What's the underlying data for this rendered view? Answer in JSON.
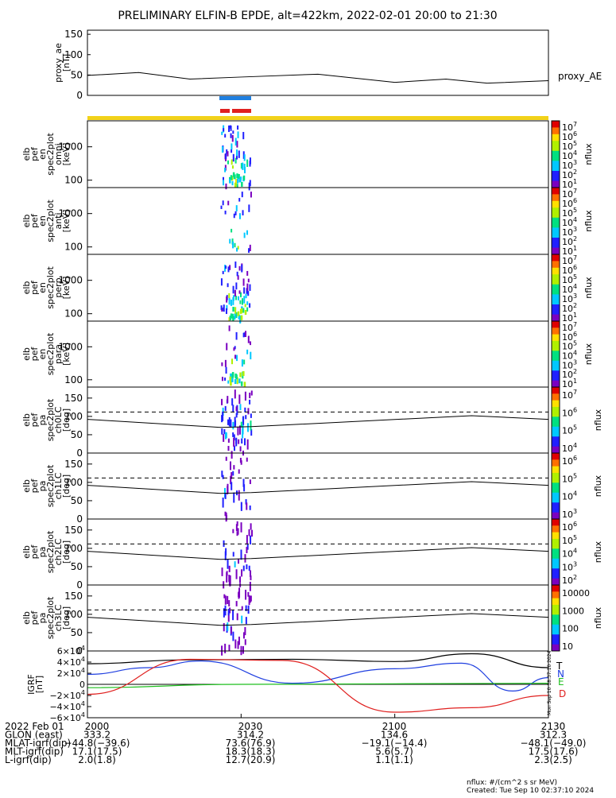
{
  "title": "PRELIMINARY ELFIN-B EPDE, alt=422km, 2022-02-01 20:00 to 21:30",
  "ae_panel": {
    "ylabel": [
      "proxy_ae",
      "[nT]"
    ],
    "yticks": [
      "150",
      "100",
      "50",
      "0"
    ],
    "series_label": "proxy_AE"
  },
  "spec_panels": [
    {
      "ylabel": [
        "elb",
        "pef",
        "en",
        "spec2plot",
        "omni",
        "[keV]"
      ],
      "yticks": [
        "1000",
        "100"
      ],
      "cbar_ticks": [
        {
          "m": "10",
          "e": "7"
        },
        {
          "m": "10",
          "e": "6"
        },
        {
          "m": "10",
          "e": "5"
        },
        {
          "m": "10",
          "e": "4"
        },
        {
          "m": "10",
          "e": "3"
        },
        {
          "m": "10",
          "e": "2"
        },
        {
          "m": "10",
          "e": "1"
        }
      ],
      "cbar_unit": "nflux"
    },
    {
      "ylabel": [
        "elb",
        "pef",
        "en",
        "spec2plot",
        "anti",
        "[keV]"
      ],
      "yticks": [
        "1000",
        "100"
      ],
      "cbar_ticks": [
        {
          "m": "10",
          "e": "7"
        },
        {
          "m": "10",
          "e": "6"
        },
        {
          "m": "10",
          "e": "5"
        },
        {
          "m": "10",
          "e": "4"
        },
        {
          "m": "10",
          "e": "3"
        },
        {
          "m": "10",
          "e": "2"
        },
        {
          "m": "10",
          "e": "1"
        }
      ],
      "cbar_unit": "nflux"
    },
    {
      "ylabel": [
        "elb",
        "pef",
        "en",
        "spec2plot",
        "perp",
        "[keV]"
      ],
      "yticks": [
        "1000",
        "100"
      ],
      "cbar_ticks": [
        {
          "m": "10",
          "e": "7"
        },
        {
          "m": "10",
          "e": "6"
        },
        {
          "m": "10",
          "e": "5"
        },
        {
          "m": "10",
          "e": "4"
        },
        {
          "m": "10",
          "e": "3"
        },
        {
          "m": "10",
          "e": "2"
        },
        {
          "m": "10",
          "e": "1"
        }
      ],
      "cbar_unit": "nflux"
    },
    {
      "ylabel": [
        "elb",
        "pef",
        "en",
        "spec2plot",
        "para",
        "[keV]"
      ],
      "yticks": [
        "1000",
        "100"
      ],
      "cbar_ticks": [
        {
          "m": "10",
          "e": "7"
        },
        {
          "m": "10",
          "e": "6"
        },
        {
          "m": "10",
          "e": "5"
        },
        {
          "m": "10",
          "e": "4"
        },
        {
          "m": "10",
          "e": "3"
        },
        {
          "m": "10",
          "e": "2"
        },
        {
          "m": "10",
          "e": "1"
        }
      ],
      "cbar_unit": "nflux"
    }
  ],
  "pa_panels": [
    {
      "ylabel": [
        "elb",
        "pef",
        "pa",
        "spec2plot",
        "ch0LC",
        "[deg]"
      ],
      "yticks": [
        "150",
        "100",
        "50",
        "0"
      ],
      "cbar_ticks": [
        {
          "m": "10",
          "e": "7"
        },
        {
          "m": "10",
          "e": "6"
        },
        {
          "m": "10",
          "e": "5"
        },
        {
          "m": "10",
          "e": "4"
        }
      ],
      "cbar_unit": "nflux"
    },
    {
      "ylabel": [
        "elb",
        "pef",
        "pa",
        "spec2plot",
        "ch1LC",
        "[deg]"
      ],
      "yticks": [
        "150",
        "100",
        "50",
        "0"
      ],
      "cbar_ticks": [
        {
          "m": "10",
          "e": "6"
        },
        {
          "m": "10",
          "e": "5"
        },
        {
          "m": "10",
          "e": "4"
        },
        {
          "m": "10",
          "e": "3"
        }
      ],
      "cbar_unit": "nflux"
    },
    {
      "ylabel": [
        "elb",
        "pef",
        "pa",
        "spec2plot",
        "ch2LC",
        "[deg]"
      ],
      "yticks": [
        "150",
        "100",
        "50",
        "0"
      ],
      "cbar_ticks": [
        {
          "m": "10",
          "e": "6"
        },
        {
          "m": "10",
          "e": "5"
        },
        {
          "m": "10",
          "e": "4"
        },
        {
          "m": "10",
          "e": "3"
        },
        {
          "m": "10",
          "e": "2"
        }
      ],
      "cbar_unit": "nflux"
    },
    {
      "ylabel": [
        "elb",
        "pef",
        "pa",
        "spec2plot",
        "ch3LC",
        "[deg]"
      ],
      "yticks": [
        "150",
        "100",
        "50",
        "0"
      ],
      "cbar_ticks": [
        {
          "m": "10000",
          "e": ""
        },
        {
          "m": "1000",
          "e": ""
        },
        {
          "m": "100",
          "e": ""
        },
        {
          "m": "10",
          "e": ""
        }
      ],
      "cbar_unit": "nflux"
    }
  ],
  "igrf_panel": {
    "ylabel": [
      "IGRF",
      "[nT]"
    ],
    "yticks": [
      {
        "m": "6×10",
        "e": "4"
      },
      {
        "m": "4×10",
        "e": "4"
      },
      {
        "m": "2×10",
        "e": "4"
      },
      {
        "m": "0",
        "e": ""
      },
      {
        "m": "−2×10",
        "e": "4"
      },
      {
        "m": "−4×10",
        "e": "4"
      },
      {
        "m": "−6×10",
        "e": "4"
      }
    ],
    "legend": [
      {
        "label": "T",
        "color": "#000000"
      },
      {
        "label": "N",
        "color": "#1f3fe0"
      },
      {
        "label": "E",
        "color": "#1fbf1f"
      },
      {
        "label": "D",
        "color": "#e0201f"
      }
    ],
    "stamp": "Mon Sep 10 18:37:10 2024"
  },
  "footer": {
    "rows": [
      {
        "label": "2022 Feb 01",
        "values": [
          "2000",
          "2030",
          "2100",
          "2130"
        ]
      },
      {
        "label": "GLON (east)",
        "values": [
          "333.2",
          "314.2",
          "134.6",
          "312.3"
        ]
      },
      {
        "label": "MLAT-igrf(dip)",
        "values": [
          "−44.8(−39.6)",
          "73.6(76.9)",
          "−19.1(−14.4)",
          "−48.1(−49.0)"
        ]
      },
      {
        "label": "MLT-igrf(dip)",
        "values": [
          "17.1(17.5)",
          "18.3(18.3)",
          "5.6(5.7)",
          "17.5(17.6)"
        ]
      },
      {
        "label": "L-igrf(dip)",
        "values": [
          "2.0(1.8)",
          "12.7(20.9)",
          "1.1(1.1)",
          "2.3(2.5)"
        ]
      }
    ],
    "units_note": "nflux: #/(cm^2 s sr MeV)",
    "created": "Created: Tue Sep 10 02:37:10 2024"
  },
  "colors": {
    "orbit_bar": "#f2d21a",
    "science_blue": "#1f7fe0",
    "science_red": "#e0201f"
  },
  "chart_data": [
    {
      "type": "line",
      "name": "proxy_AE",
      "x_minutes_after_2000": [
        0,
        10,
        20,
        30,
        45,
        60,
        70,
        78,
        90
      ],
      "values": [
        49,
        56,
        40,
        45,
        52,
        32,
        40,
        30,
        36
      ],
      "ylim": [
        0,
        160
      ]
    },
    {
      "type": "heatmap",
      "description_panels": [
        "omni",
        "anti",
        "perp",
        "para"
      ],
      "event_minutes_after_2000": [
        26,
        30
      ],
      "ylim_keV": [
        60,
        6000
      ]
    },
    {
      "type": "heatmap",
      "description_panels": [
        "ch0LC",
        "ch1LC",
        "ch2LC",
        "ch3LC"
      ],
      "loss_cone_deg_start": 92,
      "loss_cone_deg_min": 70,
      "anti_loss_cone_deg": 112,
      "ylim_deg": [
        0,
        180
      ]
    },
    {
      "type": "line",
      "name": "IGRF",
      "ylim": [
        -60000,
        60000
      ],
      "series": [
        {
          "name": "T",
          "x_min": [
            0,
            20,
            40,
            60,
            75,
            90
          ],
          "values": [
            37000,
            44000,
            45000,
            41000,
            55000,
            30000
          ]
        },
        {
          "name": "N",
          "x_min": [
            0,
            12,
            22,
            40,
            60,
            73,
            83,
            90
          ],
          "values": [
            18000,
            30000,
            42000,
            2000,
            28000,
            38000,
            -12000,
            12000
          ]
        },
        {
          "name": "E",
          "x_min": [
            0,
            30,
            90
          ],
          "values": [
            -6000,
            0,
            2000
          ]
        },
        {
          "name": "D",
          "x_min": [
            0,
            20,
            38,
            60,
            75,
            90
          ],
          "values": [
            -18000,
            45000,
            43000,
            -50000,
            -42000,
            -20000
          ]
        }
      ]
    }
  ]
}
